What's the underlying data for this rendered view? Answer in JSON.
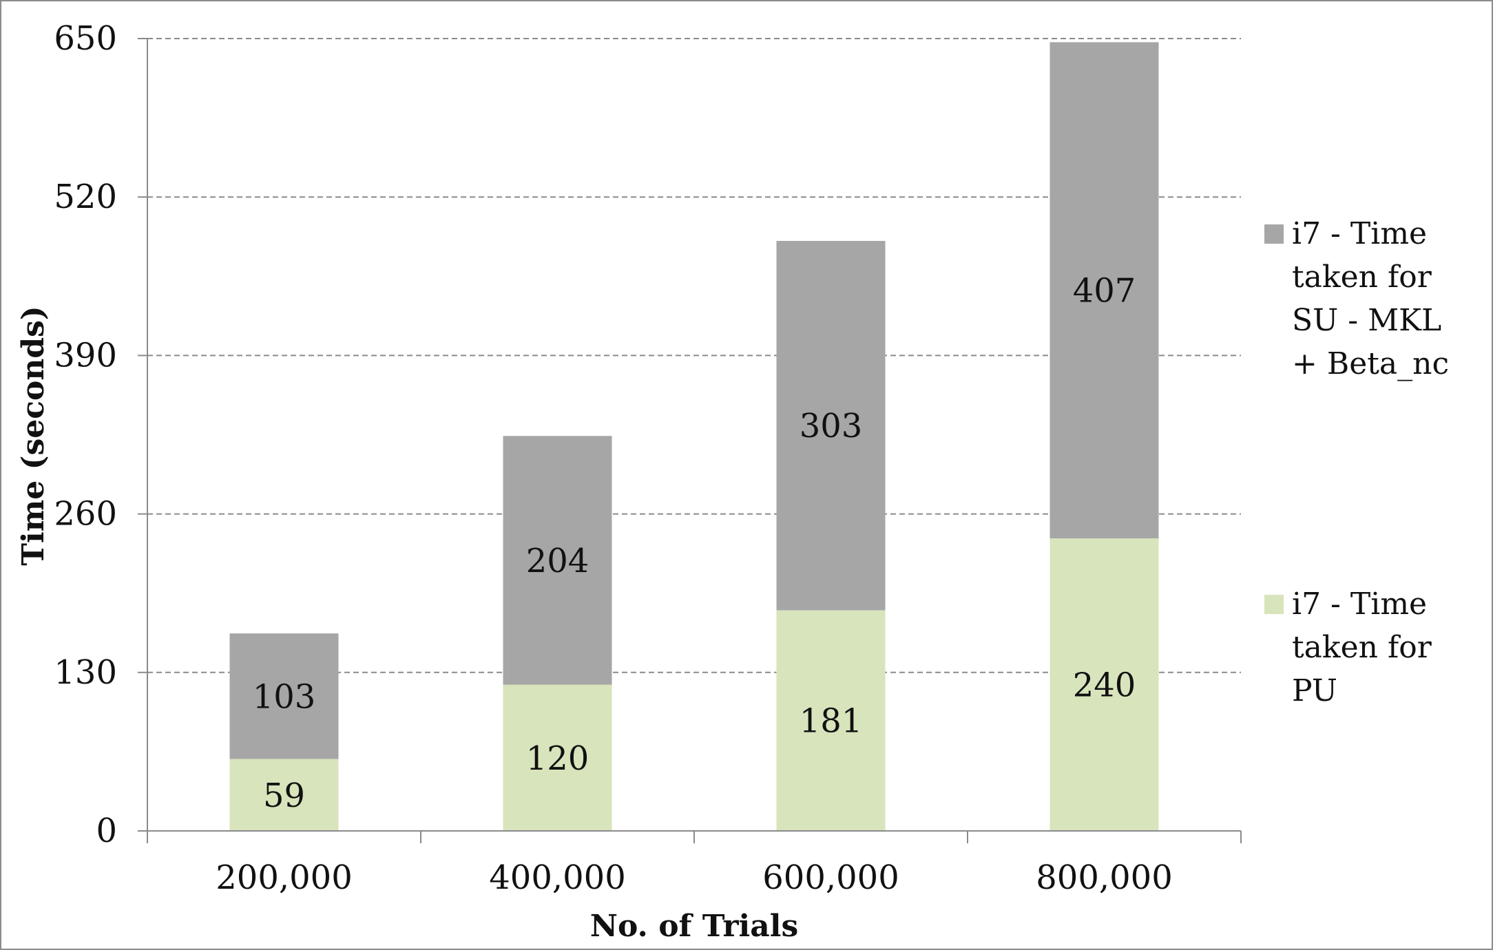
{
  "chart_data": {
    "type": "bar",
    "stacked": true,
    "title": "",
    "xlabel": "No. of Trials",
    "ylabel": "Time (seconds)",
    "categories": [
      "200,000",
      "400,000",
      "600,000",
      "800,000"
    ],
    "series": [
      {
        "name": "i7 - Time taken for PU",
        "values": [
          59,
          120,
          181,
          240
        ],
        "color": "#d8e4bc"
      },
      {
        "name": "i7 - Time taken for SU  - MKL + Beta_nc",
        "values": [
          103,
          204,
          303,
          407
        ],
        "color": "#a6a6a6"
      }
    ],
    "ylim": [
      0,
      650
    ],
    "yticks": [
      "0",
      "130",
      "260",
      "390",
      "520",
      "650"
    ],
    "grid": "horizontal dashed",
    "legend_position": "right"
  }
}
